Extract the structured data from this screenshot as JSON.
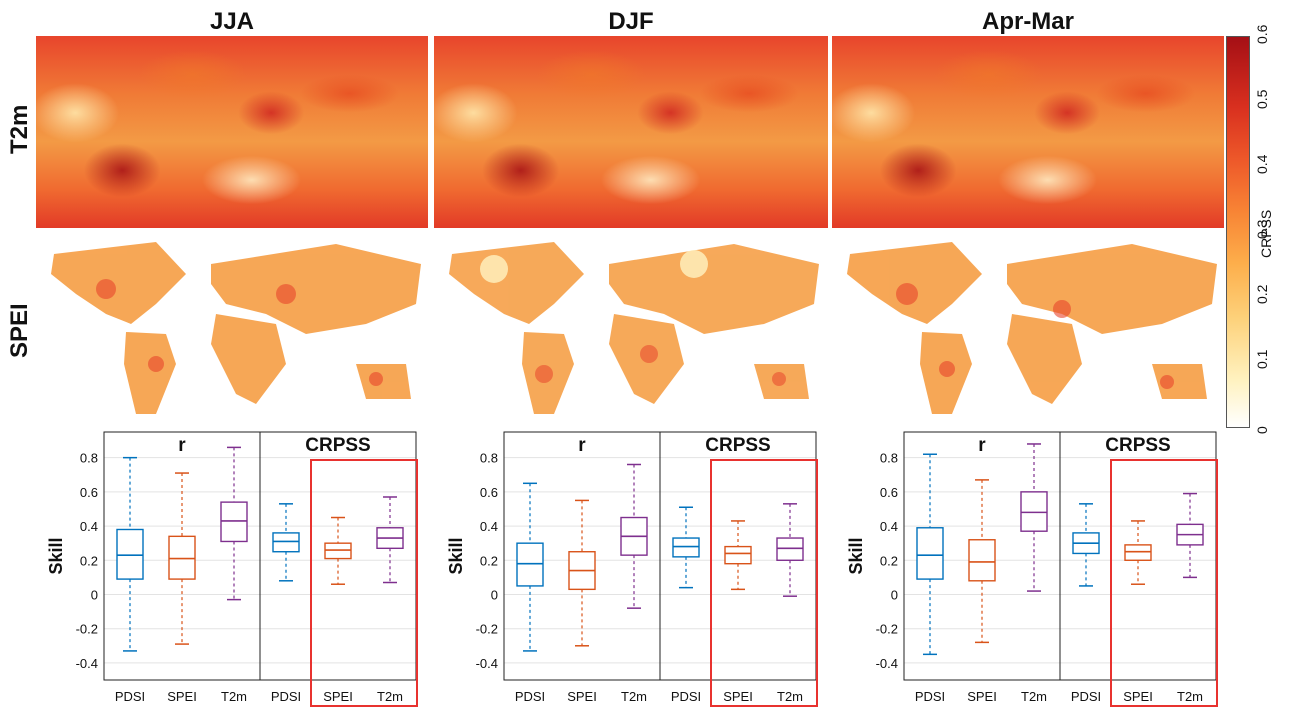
{
  "columns": [
    "JJA",
    "DJF",
    "Apr-Mar"
  ],
  "rows": [
    "T2m",
    "SPEI"
  ],
  "colorbar": {
    "label": "CRPSS",
    "ticks": [
      "0",
      "0.1",
      "0.2",
      "0.3",
      "0.4",
      "0.5",
      "0.6"
    ],
    "colors": [
      "#ffffff",
      "#fff2c0",
      "#fdd17a",
      "#fdae4b",
      "#f88535",
      "#ee5a2a",
      "#d9301f",
      "#a50f15"
    ]
  },
  "colors": {
    "PDSI": "#0072bd",
    "SPEI": "#d95319",
    "T2m": "#7e2f8e",
    "highlight": "#e8322f"
  },
  "chart_data": [
    {
      "type": "boxplot",
      "panel": "JJA",
      "ylabel": "Skill",
      "ylim": [
        -0.5,
        0.95
      ],
      "yticks": [
        -0.4,
        -0.2,
        0,
        0.2,
        0.4,
        0.6,
        0.8
      ],
      "groups": [
        {
          "title": "r",
          "boxes": [
            {
              "label": "PDSI",
              "min": -0.33,
              "q1": 0.09,
              "median": 0.23,
              "q3": 0.38,
              "max": 0.8
            },
            {
              "label": "SPEI",
              "min": -0.29,
              "q1": 0.09,
              "median": 0.21,
              "q3": 0.34,
              "max": 0.71
            },
            {
              "label": "T2m",
              "min": -0.03,
              "q1": 0.31,
              "median": 0.43,
              "q3": 0.54,
              "max": 0.86
            }
          ]
        },
        {
          "title": "CRPSS",
          "boxes": [
            {
              "label": "PDSI",
              "min": 0.08,
              "q1": 0.25,
              "median": 0.31,
              "q3": 0.36,
              "max": 0.53
            },
            {
              "label": "SPEI",
              "min": 0.06,
              "q1": 0.21,
              "median": 0.26,
              "q3": 0.3,
              "max": 0.45
            },
            {
              "label": "T2m",
              "min": 0.07,
              "q1": 0.27,
              "median": 0.33,
              "q3": 0.39,
              "max": 0.57
            }
          ]
        }
      ]
    },
    {
      "type": "boxplot",
      "panel": "DJF",
      "ylabel": "Skill",
      "ylim": [
        -0.5,
        0.95
      ],
      "yticks": [
        -0.4,
        -0.2,
        0,
        0.2,
        0.4,
        0.6,
        0.8
      ],
      "groups": [
        {
          "title": "r",
          "boxes": [
            {
              "label": "PDSI",
              "min": -0.33,
              "q1": 0.05,
              "median": 0.18,
              "q3": 0.3,
              "max": 0.65
            },
            {
              "label": "SPEI",
              "min": -0.3,
              "q1": 0.03,
              "median": 0.14,
              "q3": 0.25,
              "max": 0.55
            },
            {
              "label": "T2m",
              "min": -0.08,
              "q1": 0.23,
              "median": 0.34,
              "q3": 0.45,
              "max": 0.76
            }
          ]
        },
        {
          "title": "CRPSS",
          "boxes": [
            {
              "label": "PDSI",
              "min": 0.04,
              "q1": 0.22,
              "median": 0.28,
              "q3": 0.33,
              "max": 0.51
            },
            {
              "label": "SPEI",
              "min": 0.03,
              "q1": 0.18,
              "median": 0.24,
              "q3": 0.28,
              "max": 0.43
            },
            {
              "label": "T2m",
              "min": -0.01,
              "q1": 0.2,
              "median": 0.27,
              "q3": 0.33,
              "max": 0.53
            }
          ]
        }
      ]
    },
    {
      "type": "boxplot",
      "panel": "Apr-Mar",
      "ylabel": "Skill",
      "ylim": [
        -0.5,
        0.95
      ],
      "yticks": [
        -0.4,
        -0.2,
        0,
        0.2,
        0.4,
        0.6,
        0.8
      ],
      "groups": [
        {
          "title": "r",
          "boxes": [
            {
              "label": "PDSI",
              "min": -0.35,
              "q1": 0.09,
              "median": 0.23,
              "q3": 0.39,
              "max": 0.82
            },
            {
              "label": "SPEI",
              "min": -0.28,
              "q1": 0.08,
              "median": 0.19,
              "q3": 0.32,
              "max": 0.67
            },
            {
              "label": "T2m",
              "min": 0.02,
              "q1": 0.37,
              "median": 0.48,
              "q3": 0.6,
              "max": 0.88
            }
          ]
        },
        {
          "title": "CRPSS",
          "boxes": [
            {
              "label": "PDSI",
              "min": 0.05,
              "q1": 0.24,
              "median": 0.3,
              "q3": 0.36,
              "max": 0.53
            },
            {
              "label": "SPEI",
              "min": 0.06,
              "q1": 0.2,
              "median": 0.25,
              "q3": 0.29,
              "max": 0.43
            },
            {
              "label": "T2m",
              "min": 0.1,
              "q1": 0.29,
              "median": 0.35,
              "q3": 0.41,
              "max": 0.59
            }
          ]
        }
      ]
    }
  ]
}
